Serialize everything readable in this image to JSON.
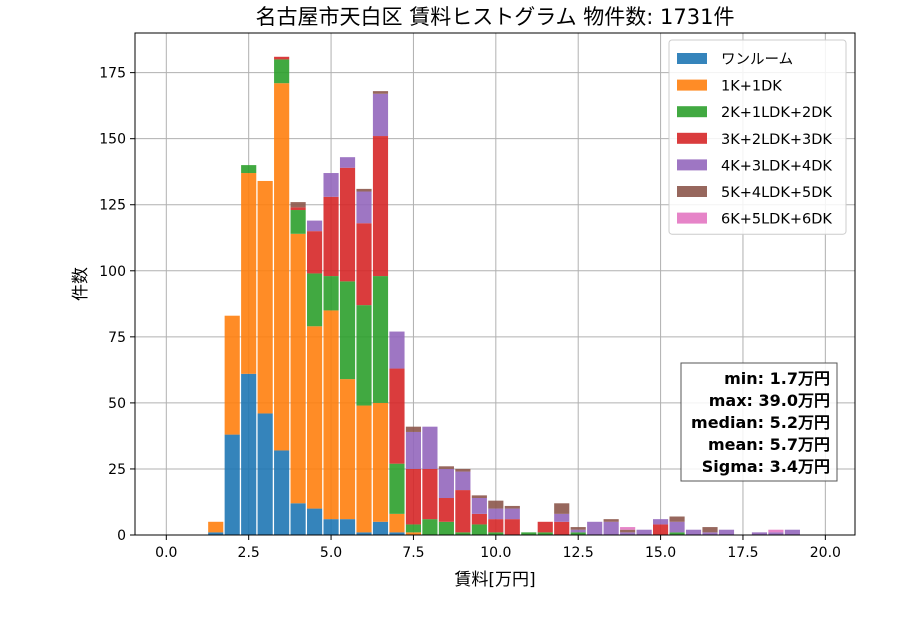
{
  "chart_data": {
    "type": "bar",
    "title": "名古屋市天白区 賃料ヒストグラム 物件数: 1731件",
    "xlabel": "賃料[万円]",
    "ylabel": "件数",
    "xlim": [
      -0.95,
      20.9
    ],
    "ylim": [
      0,
      190
    ],
    "xticks": [
      0.0,
      2.5,
      5.0,
      7.5,
      10.0,
      12.5,
      15.0,
      17.5,
      20.0
    ],
    "yticks": [
      0,
      25,
      50,
      75,
      100,
      125,
      150,
      175
    ],
    "grid": true,
    "stacked": true,
    "bin_width": 0.5,
    "legend_position": "top-right",
    "bin_centers": [
      1.5,
      2.0,
      2.5,
      3.0,
      3.5,
      4.0,
      4.5,
      5.0,
      5.5,
      6.0,
      6.5,
      7.0,
      7.5,
      8.0,
      8.5,
      9.0,
      9.5,
      10.0,
      10.5,
      11.0,
      11.5,
      12.0,
      12.5,
      13.0,
      13.5,
      14.0,
      14.5,
      15.0,
      15.5,
      16.0,
      16.5,
      17.0,
      17.5,
      18.0,
      18.5,
      19.0
    ],
    "series": [
      {
        "name": "ワンルーム",
        "color": "#1f77b4",
        "values": [
          1,
          38,
          61,
          46,
          32,
          12,
          10,
          6,
          6,
          1,
          5,
          1,
          0,
          0,
          0,
          0,
          0,
          0,
          0,
          0,
          0,
          0,
          0,
          0,
          0,
          0,
          0,
          0,
          0,
          0,
          0,
          0,
          0,
          0,
          0,
          0
        ]
      },
      {
        "name": "1K+1DK",
        "color": "#ff7f0e",
        "values": [
          4,
          45,
          76,
          88,
          139,
          102,
          69,
          79,
          53,
          48,
          45,
          7,
          1,
          0,
          0,
          0,
          0,
          0,
          0,
          0,
          0,
          0,
          0,
          0,
          0,
          0,
          0,
          0,
          0,
          0,
          0,
          0,
          0,
          0,
          0,
          0
        ]
      },
      {
        "name": "2K+1LDK+2DK",
        "color": "#2ca02c",
        "values": [
          0,
          0,
          3,
          0,
          9,
          9,
          20,
          13,
          37,
          38,
          48,
          19,
          3,
          6,
          5,
          1,
          4,
          1,
          0,
          1,
          1,
          0,
          1,
          0,
          0,
          0,
          0,
          0,
          1,
          0,
          0,
          0,
          0,
          0,
          0,
          0
        ]
      },
      {
        "name": "3K+2LDK+3DK",
        "color": "#d62728",
        "values": [
          0,
          0,
          0,
          0,
          1,
          1,
          16,
          30,
          43,
          31,
          53,
          36,
          21,
          19,
          9,
          16,
          4,
          5,
          6,
          0,
          4,
          5,
          0,
          0,
          0,
          0,
          0,
          4,
          0,
          0,
          0,
          0,
          0,
          0,
          0,
          0
        ]
      },
      {
        "name": "4K+3LDK+4DK",
        "color": "#9467bd",
        "values": [
          0,
          0,
          0,
          0,
          0,
          0,
          4,
          9,
          4,
          12,
          16,
          14,
          14,
          16,
          11,
          7,
          6,
          4,
          4,
          0,
          0,
          3,
          1,
          5,
          5,
          1,
          2,
          2,
          4,
          2,
          1,
          2,
          0,
          1,
          1,
          2
        ]
      },
      {
        "name": "5K+4LDK+5DK",
        "color": "#8c564b",
        "values": [
          0,
          0,
          0,
          0,
          0,
          2,
          0,
          0,
          0,
          1,
          1,
          0,
          2,
          0,
          1,
          1,
          1,
          3,
          1,
          0,
          0,
          4,
          1,
          0,
          1,
          1,
          0,
          0,
          2,
          0,
          2,
          0,
          0,
          0,
          0,
          0
        ]
      },
      {
        "name": "6K+5LDK+6DK",
        "color": "#e377c2",
        "values": [
          0,
          0,
          0,
          0,
          0,
          0,
          0,
          0,
          0,
          0,
          0,
          0,
          0,
          0,
          0,
          0,
          0,
          0,
          0,
          0,
          0,
          0,
          0,
          0,
          0,
          1,
          0,
          0,
          0,
          0,
          0,
          0,
          0,
          0,
          1,
          0
        ]
      }
    ],
    "stats_box": {
      "min": "min: 1.7万円",
      "max": "max: 39.0万円",
      "median": "median: 5.2万円",
      "mean": "mean: 5.7万円",
      "sigma": "Sigma: 3.4万円"
    }
  }
}
